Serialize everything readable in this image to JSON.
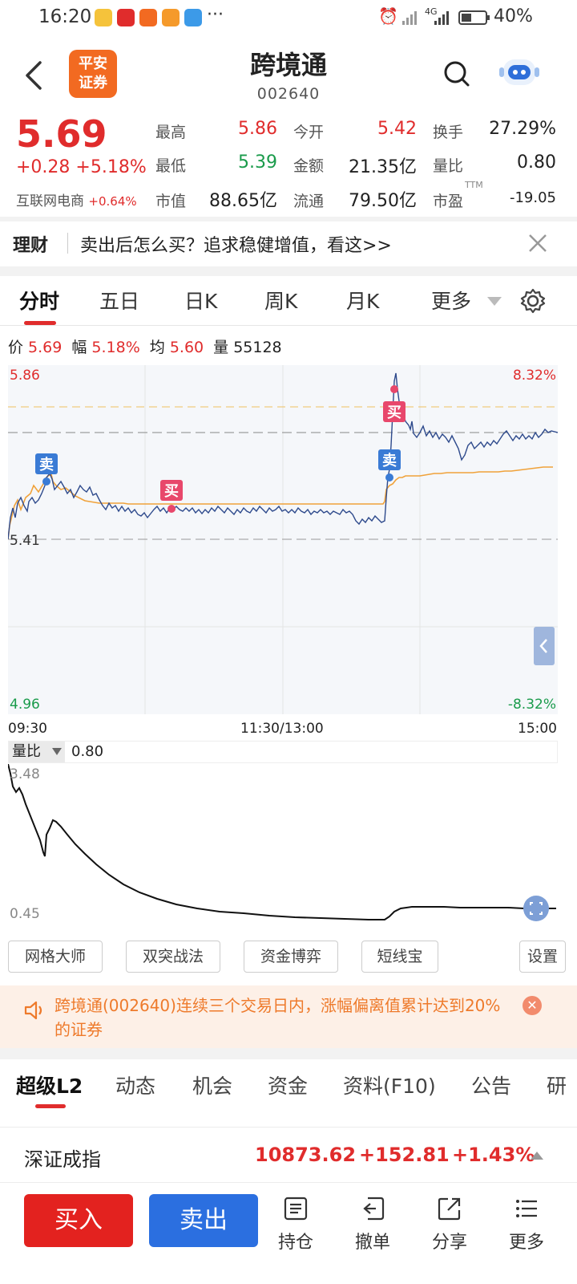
{
  "status_bar": {
    "time": "16:20",
    "more": "···",
    "battery": "40%",
    "network": "4G"
  },
  "header": {
    "logo_line1": "平安",
    "logo_line2": "证券",
    "title": "跨境通",
    "code": "002640"
  },
  "quote": {
    "price": "5.69",
    "change": "+0.28",
    "change_pct": "+5.18%",
    "sector_name": "互联网电商",
    "sector_pct": "+0.64%",
    "fields": [
      {
        "label": "最高",
        "value": "5.86",
        "color": "red"
      },
      {
        "label": "今开",
        "value": "5.42",
        "color": "red"
      },
      {
        "label": "换手",
        "value": "27.29%",
        "color": "black"
      },
      {
        "label": "最低",
        "value": "5.39",
        "color": "green"
      },
      {
        "label": "金额",
        "value": "21.35亿",
        "color": "black"
      },
      {
        "label": "量比",
        "value": "0.80",
        "color": "black"
      },
      {
        "label": "市值",
        "value": "88.65亿",
        "color": "black"
      },
      {
        "label": "流通",
        "value": "79.50亿",
        "color": "black"
      },
      {
        "label": "市盈",
        "sup": "TTM",
        "value": "-19.05",
        "color": "black"
      }
    ]
  },
  "promo": {
    "tag": "理财",
    "text": "卖出后怎么买？追求稳健增值，看这>>"
  },
  "tabs": [
    "分时",
    "五日",
    "日K",
    "周K",
    "月K",
    "更多"
  ],
  "info_line": {
    "price_label": "价",
    "price": "5.69",
    "amp_label": "幅",
    "amp": "5.18%",
    "avg_label": "均",
    "avg": "5.60",
    "vol_label": "量",
    "vol": "55128"
  },
  "chart_labels": {
    "high": "5.86",
    "high_pct": "8.32%",
    "ref": "5.41",
    "low": "4.96",
    "low_pct": "-8.32%",
    "t_start": "09:30",
    "t_mid": "11:30/13:00",
    "t_end": "15:00",
    "sell_mark": "卖",
    "buy_mark": "买"
  },
  "volume_ratio": {
    "selector": "量比",
    "value": "0.80",
    "max": "3.48",
    "min": "0.45"
  },
  "strategy_buttons": [
    "网格大师",
    "双突战法",
    "资金博弈",
    "短线宝"
  ],
  "settings_button": "设置",
  "warning": {
    "text": "跨境通(002640)连续三个交易日内，涨幅偏离值累计达到20%的证券"
  },
  "lower_tabs": [
    "超级L2",
    "动态",
    "机会",
    "资金",
    "资料(F10)",
    "公告",
    "研"
  ],
  "index_bar": {
    "name": "深证成指",
    "value": "10873.62",
    "change": "+152.81",
    "pct": "+1.43%"
  },
  "bottom": {
    "buy": "买入",
    "sell": "卖出",
    "position": "持仓",
    "cancel": "撤单",
    "share": "分享",
    "more": "更多"
  },
  "colors": {
    "up": "#e02c2c",
    "down": "#1a9b4b",
    "buy_button": "#e3221f",
    "sell_button": "#2b6fe0",
    "avg_line": "#f0a23a",
    "price_line": "#2e4a8c"
  }
}
